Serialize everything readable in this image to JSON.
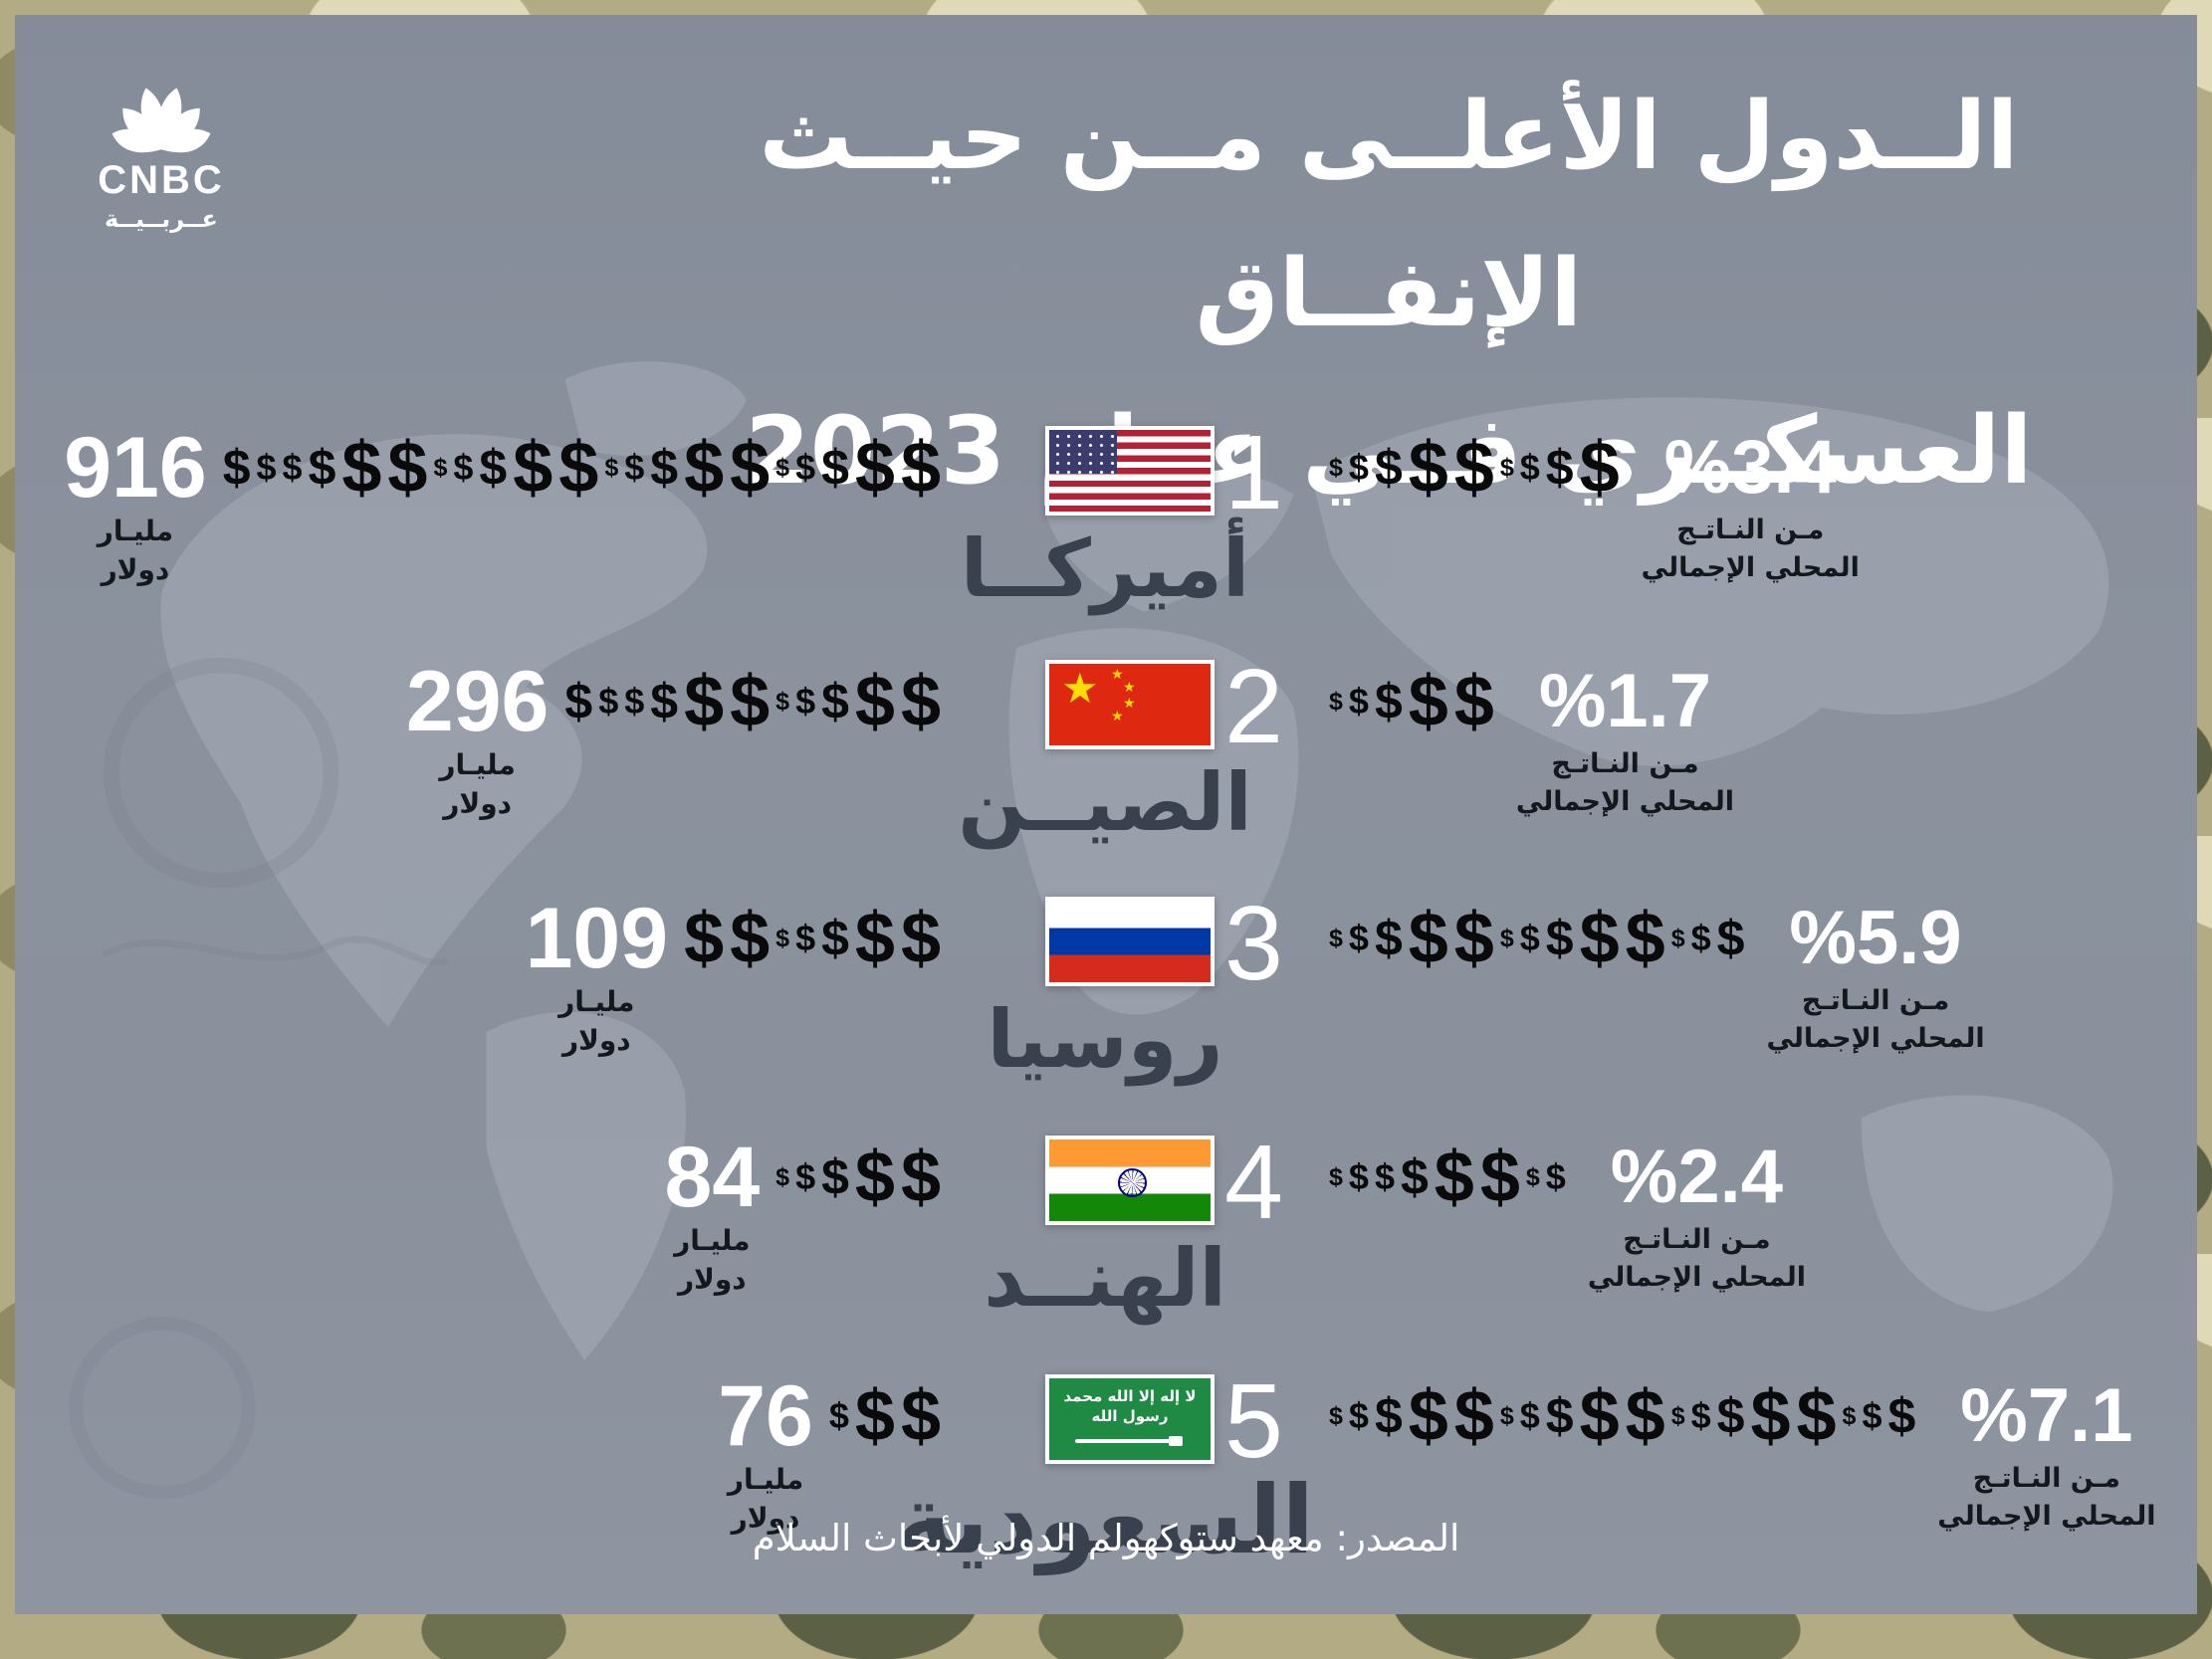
{
  "brand": {
    "name": "CNBC",
    "sub": "عــربــيــة"
  },
  "title": {
    "line1": "الــدول الأعلــى مــن حيــث الإنفــاق",
    "line2": "العسكــري فــي عــام 2023"
  },
  "labels": {
    "billion": "مليـار",
    "dollar": "دولار",
    "gdp_line1": "مـن النـاتـج",
    "gdp_line2": "المحلي الإجمالي"
  },
  "source": "المصدر: معهد ستوكهولم الدولي لأبحاث السلام",
  "colors": {
    "panel": "#8a919d",
    "camo_base": "#b3ab83",
    "dollar_sign": "#0a0a0a",
    "country_text": "#3a414e",
    "white_text": "#ffffff"
  },
  "rows": [
    {
      "rank": "1",
      "country": "أميركــا",
      "flag": "usa",
      "amount": "916",
      "gdp_percent": "%3.4",
      "spend_dollars": [
        "m",
        "s",
        "s",
        "m",
        "xl",
        "xl",
        "xs",
        "s",
        "m",
        "xl",
        "xl",
        "xs",
        "s",
        "m",
        "xl",
        "xl",
        "xs",
        "s",
        "m",
        "xl",
        "xl"
      ],
      "gdp_dollars": [
        "xs",
        "s",
        "m",
        "xl",
        "xl",
        "xs",
        "s",
        "m",
        "xl"
      ]
    },
    {
      "rank": "2",
      "country": "الصيــن",
      "flag": "china",
      "amount": "296",
      "gdp_percent": "%1.7",
      "spend_dollars": [
        "m",
        "s",
        "s",
        "m",
        "xl",
        "xl",
        "xs",
        "s",
        "m",
        "xl",
        "xl"
      ],
      "gdp_dollars": [
        "xs",
        "s",
        "m",
        "xl",
        "xl"
      ]
    },
    {
      "rank": "3",
      "country": "روسيا",
      "flag": "russia",
      "amount": "109",
      "gdp_percent": "%5.9",
      "spend_dollars": [
        "xl",
        "xl",
        "xs",
        "s",
        "m",
        "xl",
        "xl"
      ],
      "gdp_dollars": [
        "xs",
        "s",
        "m",
        "xl",
        "xl",
        "xs",
        "s",
        "m",
        "xl",
        "xl",
        "xs",
        "s",
        "m"
      ]
    },
    {
      "rank": "4",
      "country": "الهنــد",
      "flag": "india",
      "amount": "84",
      "gdp_percent": "%2.4",
      "spend_dollars": [
        "xs",
        "s",
        "m",
        "xl",
        "xl"
      ],
      "gdp_dollars": [
        "xs",
        "s",
        "s",
        "m",
        "xl",
        "xl",
        "xs",
        "s"
      ]
    },
    {
      "rank": "5",
      "country": "السعودية",
      "flag": "saudi-arabia",
      "amount": "76",
      "gdp_percent": "%7.1",
      "spend_dollars": [
        "s",
        "xl",
        "xl"
      ],
      "gdp_dollars": [
        "xs",
        "s",
        "m",
        "xl",
        "xl",
        "xs",
        "s",
        "m",
        "xl",
        "xl",
        "xs",
        "s",
        "m",
        "xl",
        "xl",
        "xs",
        "s",
        "m"
      ]
    }
  ],
  "chart_data": {
    "type": "table",
    "title": "الدول الأعلى من حيث الإنفاق العسكري في عام 2023",
    "categories": [
      "أميركا",
      "الصين",
      "روسيا",
      "الهند",
      "السعودية"
    ],
    "series": [
      {
        "name": "الإنفاق العسكري (مليار دولار)",
        "values": [
          916,
          296,
          109,
          84,
          76
        ]
      },
      {
        "name": "نسبة من الناتج المحلي الإجمالي (%)",
        "values": [
          3.4,
          1.7,
          5.9,
          2.4,
          7.1
        ]
      }
    ],
    "ranks": [
      1,
      2,
      3,
      4,
      5
    ],
    "source": "معهد ستوكهولم الدولي لأبحاث السلام",
    "legend_position": "none",
    "grid": false
  }
}
